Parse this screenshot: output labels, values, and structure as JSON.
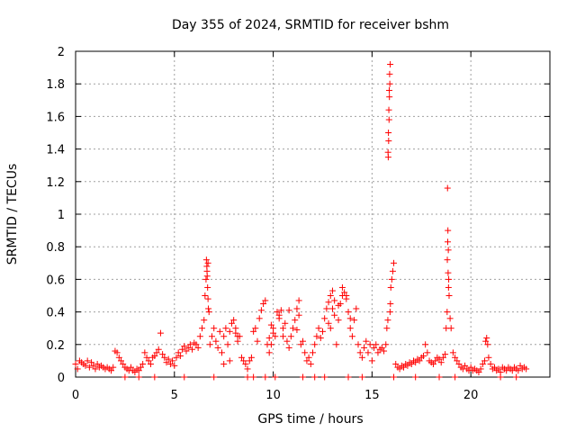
{
  "chart_data": {
    "type": "scatter",
    "title": "Day 355 of 2024, SRMTID for receiver bshm",
    "xlabel": "GPS time / hours",
    "ylabel": "SRMTID / TECUs",
    "xlim": [
      0,
      24
    ],
    "ylim": [
      0,
      2
    ],
    "xticks": [
      0,
      5,
      10,
      15,
      20
    ],
    "yticks": [
      0,
      0.2,
      0.4,
      0.6,
      0.8,
      1,
      1.2,
      1.4,
      1.6,
      1.8,
      2
    ],
    "xtick_labels": [
      "0",
      "5",
      "10",
      "15",
      "20"
    ],
    "ytick_labels": [
      "0",
      "0.2",
      "0.4",
      "0.6",
      "0.8",
      "1",
      "1.2",
      "1.4",
      "1.6",
      "1.8",
      "2"
    ],
    "grid": true,
    "marker": "plus",
    "color": "#ff0000",
    "series": [
      {
        "name": "SRMTID",
        "x": [
          0.0,
          0.1,
          0.2,
          0.3,
          0.4,
          0.5,
          0.6,
          0.7,
          0.8,
          0.9,
          1.0,
          1.1,
          1.2,
          1.3,
          1.4,
          1.5,
          1.6,
          1.7,
          1.8,
          1.9,
          2.0,
          2.1,
          2.2,
          2.3,
          2.4,
          2.5,
          2.6,
          2.7,
          2.8,
          2.9,
          3.0,
          3.1,
          3.2,
          3.3,
          3.4,
          3.5,
          3.6,
          3.7,
          3.8,
          3.9,
          4.0,
          4.1,
          4.2,
          4.3,
          4.4,
          4.5,
          4.6,
          4.7,
          4.8,
          4.9,
          5.0,
          5.1,
          5.2,
          5.3,
          5.4,
          5.5,
          5.6,
          5.7,
          5.8,
          5.9,
          6.0,
          6.1,
          6.2,
          6.3,
          6.4,
          6.5,
          6.55,
          6.6,
          6.65,
          6.7,
          6.75,
          6.8,
          6.9,
          7.0,
          7.1,
          7.2,
          7.3,
          7.4,
          7.5,
          7.6,
          7.7,
          7.8,
          7.9,
          8.0,
          8.1,
          8.2,
          8.3,
          8.4,
          8.5,
          8.6,
          8.7,
          8.8,
          8.9,
          9.0,
          9.1,
          9.2,
          9.3,
          9.4,
          9.5,
          9.6,
          9.7,
          9.8,
          9.9,
          10.0,
          10.1,
          10.2,
          10.3,
          10.4,
          10.5,
          10.6,
          10.7,
          10.8,
          10.9,
          11.0,
          11.1,
          11.2,
          11.3,
          11.4,
          11.5,
          11.6,
          11.7,
          11.8,
          11.9,
          12.0,
          12.1,
          12.2,
          12.3,
          12.4,
          12.5,
          12.6,
          12.7,
          12.8,
          12.9,
          13.0,
          13.1,
          13.2,
          13.3,
          13.4,
          13.5,
          13.6,
          13.7,
          13.8,
          13.9,
          14.0,
          14.1,
          14.2,
          14.3,
          14.4,
          14.5,
          14.6,
          14.7,
          14.8,
          14.9,
          15.0,
          15.1,
          15.2,
          15.3,
          15.4,
          15.5,
          15.6,
          15.7,
          15.75,
          15.8,
          15.82,
          15.84,
          15.86,
          15.88,
          15.9,
          15.92,
          15.95,
          16.0,
          16.05,
          16.1,
          16.2,
          16.3,
          16.4,
          16.5,
          16.6,
          16.7,
          16.8,
          16.9,
          17.0,
          17.1,
          17.2,
          17.3,
          17.4,
          17.5,
          17.6,
          17.7,
          17.8,
          17.9,
          18.0,
          18.1,
          18.2,
          18.3,
          18.4,
          18.5,
          18.6,
          18.7,
          18.75,
          18.8,
          18.82,
          18.84,
          18.86,
          18.88,
          18.9,
          18.95,
          19.0,
          19.1,
          19.2,
          19.3,
          19.4,
          19.5,
          19.6,
          19.7,
          19.8,
          19.9,
          20.0,
          20.1,
          20.2,
          20.3,
          20.4,
          20.5,
          20.6,
          20.7,
          20.75,
          20.8,
          20.85,
          20.9,
          21.0,
          21.1,
          21.2,
          21.3,
          21.4,
          21.5,
          21.6,
          21.7,
          21.8,
          21.9,
          22.0,
          22.1,
          22.2,
          22.3,
          22.4,
          22.5,
          22.6,
          22.7,
          22.8,
          6.62,
          6.64,
          6.66,
          6.68,
          6.7,
          6.72,
          15.81,
          15.83,
          15.85,
          15.87,
          15.89,
          15.91,
          15.93,
          18.81,
          18.83,
          18.85,
          18.87,
          13.3,
          13.5,
          13.7,
          13.9,
          12.8,
          12.9,
          13.0,
          13.1,
          10.3,
          10.5,
          10.8,
          11.2,
          11.3,
          9.8,
          9.9,
          10.0,
          8.1,
          8.2,
          7.8,
          7.5,
          2.5,
          4.0,
          7.0,
          9.0,
          9.6,
          10.1,
          12.1,
          12.6,
          14.5,
          16.1,
          18.4,
          19.2,
          22.3,
          3.2,
          5.5,
          8.7,
          11.5,
          13.8,
          17.2,
          21.5
        ],
        "y": [
          0.08,
          0.05,
          0.1,
          0.09,
          0.08,
          0.07,
          0.1,
          0.06,
          0.09,
          0.07,
          0.05,
          0.08,
          0.06,
          0.07,
          0.06,
          0.05,
          0.06,
          0.05,
          0.04,
          0.06,
          0.16,
          0.15,
          0.12,
          0.1,
          0.08,
          0.06,
          0.05,
          0.04,
          0.06,
          0.04,
          0.03,
          0.05,
          0.04,
          0.06,
          0.08,
          0.15,
          0.12,
          0.1,
          0.08,
          0.12,
          0.13,
          0.15,
          0.17,
          0.27,
          0.14,
          0.12,
          0.09,
          0.11,
          0.08,
          0.1,
          0.07,
          0.12,
          0.15,
          0.13,
          0.17,
          0.19,
          0.16,
          0.18,
          0.2,
          0.17,
          0.21,
          0.2,
          0.18,
          0.25,
          0.3,
          0.35,
          0.5,
          0.6,
          0.65,
          0.7,
          0.4,
          0.2,
          0.25,
          0.3,
          0.22,
          0.18,
          0.28,
          0.15,
          0.25,
          0.3,
          0.2,
          0.28,
          0.33,
          0.35,
          0.27,
          0.22,
          0.25,
          0.12,
          0.1,
          0.08,
          0.05,
          0.1,
          0.12,
          0.28,
          0.3,
          0.22,
          0.36,
          0.41,
          0.45,
          0.47,
          0.2,
          0.15,
          0.32,
          0.3,
          0.25,
          0.4,
          0.38,
          0.41,
          0.25,
          0.33,
          0.22,
          0.18,
          0.25,
          0.3,
          0.35,
          0.42,
          0.47,
          0.2,
          0.22,
          0.15,
          0.1,
          0.12,
          0.08,
          0.15,
          0.2,
          0.25,
          0.3,
          0.24,
          0.28,
          0.36,
          0.42,
          0.46,
          0.5,
          0.53,
          0.38,
          0.2,
          0.35,
          0.45,
          0.55,
          0.52,
          0.5,
          0.4,
          0.3,
          0.25,
          0.35,
          0.42,
          0.2,
          0.15,
          0.12,
          0.18,
          0.22,
          0.15,
          0.2,
          0.1,
          0.18,
          0.2,
          0.15,
          0.17,
          0.18,
          0.16,
          0.2,
          0.3,
          0.35,
          1.35,
          1.45,
          1.58,
          1.72,
          1.8,
          1.92,
          0.55,
          0.6,
          0.65,
          0.7,
          0.08,
          0.06,
          0.05,
          0.07,
          0.06,
          0.08,
          0.07,
          0.09,
          0.08,
          0.1,
          0.09,
          0.11,
          0.1,
          0.12,
          0.13,
          0.2,
          0.15,
          0.1,
          0.09,
          0.08,
          0.1,
          0.12,
          0.11,
          0.09,
          0.12,
          0.14,
          0.3,
          0.4,
          1.16,
          0.9,
          0.78,
          0.6,
          0.5,
          0.36,
          0.3,
          0.15,
          0.12,
          0.1,
          0.08,
          0.06,
          0.05,
          0.07,
          0.05,
          0.04,
          0.06,
          0.04,
          0.05,
          0.04,
          0.03,
          0.05,
          0.08,
          0.1,
          0.22,
          0.24,
          0.2,
          0.12,
          0.08,
          0.05,
          0.06,
          0.04,
          0.05,
          0.03,
          0.06,
          0.05,
          0.04,
          0.06,
          0.05,
          0.04,
          0.06,
          0.05,
          0.04,
          0.07,
          0.05,
          0.06,
          0.05,
          0.72,
          0.68,
          0.62,
          0.55,
          0.48,
          0.42,
          1.38,
          1.5,
          1.64,
          1.76,
          1.86,
          0.4,
          0.45,
          0.72,
          0.83,
          0.64,
          0.55,
          0.44,
          0.5,
          0.48,
          0.36,
          0.33,
          0.3,
          0.42,
          0.47,
          0.36,
          0.3,
          0.41,
          0.29,
          0.38,
          0.24,
          0.2,
          0.27,
          0.3,
          0.25,
          0.1,
          0.08,
          0.0,
          0.0,
          0.0,
          0.0,
          0.0,
          0.0,
          0.0,
          0.0,
          0.0,
          0.0,
          0.0,
          0.0,
          0.0,
          0.0,
          0.0,
          0.0,
          0.0,
          0.0,
          0.0,
          0.0
        ]
      }
    ]
  }
}
